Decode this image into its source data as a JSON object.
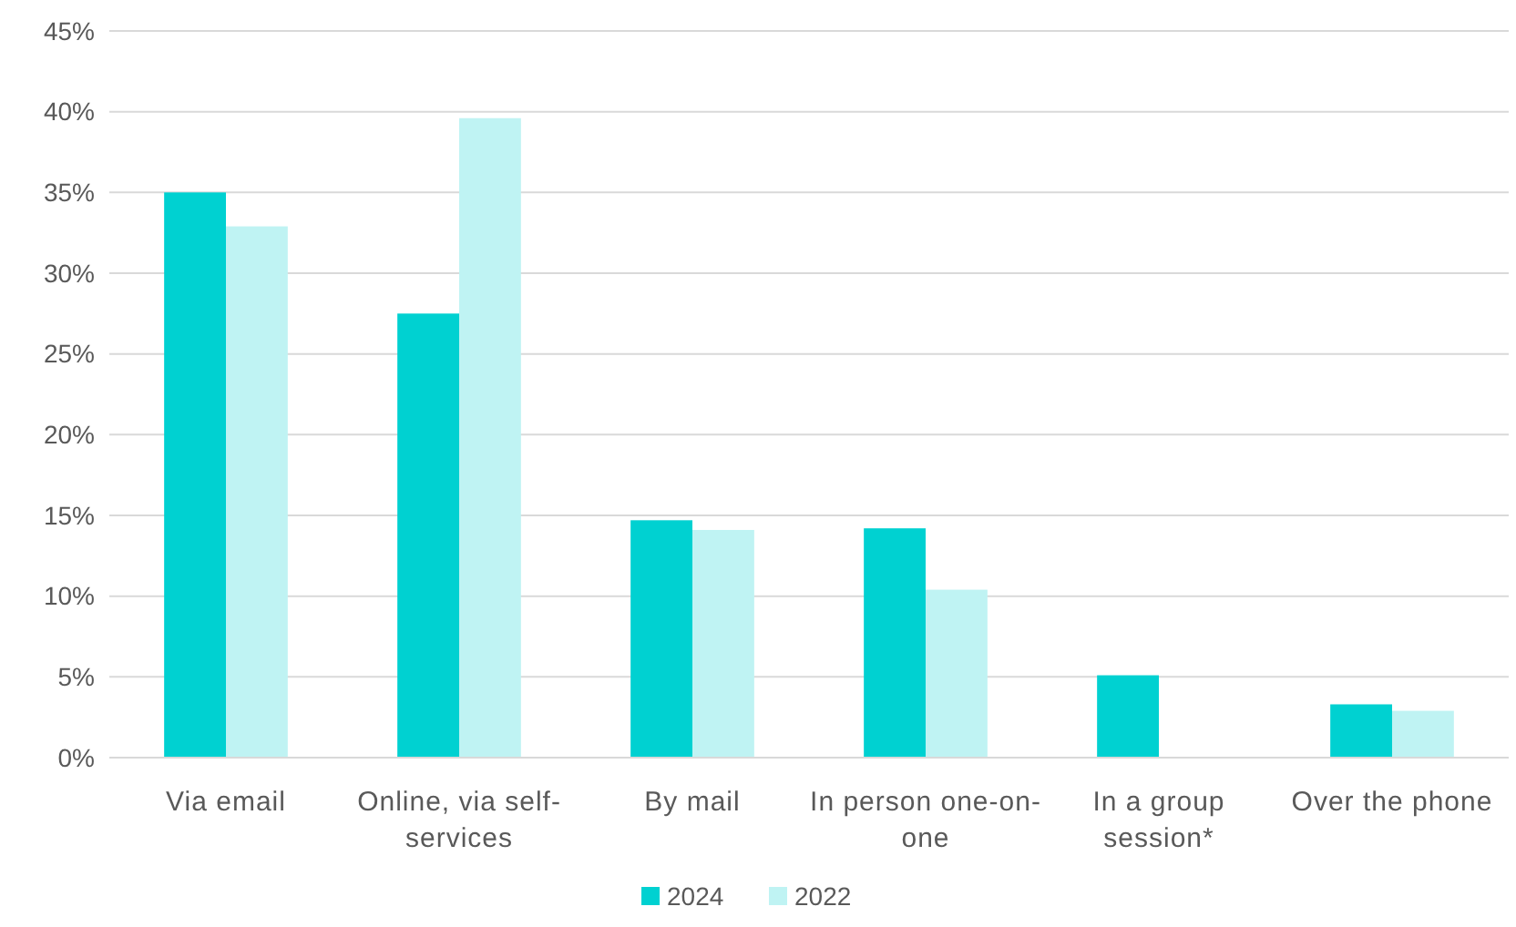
{
  "chart_data": {
    "type": "bar",
    "categories": [
      "Via email",
      "Online, via self-services",
      "By mail",
      "In person one-on-one",
      "In a group session*",
      "Over the phone"
    ],
    "series": [
      {
        "name": "2024",
        "color": "#00d1d1",
        "values": [
          35,
          27.5,
          14.7,
          14.2,
          5.1,
          3.3
        ]
      },
      {
        "name": "2022",
        "color": "#bff3f3",
        "values": [
          32.9,
          39.6,
          14.1,
          10.4,
          null,
          2.9
        ]
      }
    ],
    "ylim": [
      0,
      45
    ],
    "yticks": [
      {
        "value": 0,
        "label": "0%"
      },
      {
        "value": 5,
        "label": "5%"
      },
      {
        "value": 10,
        "label": "10%"
      },
      {
        "value": 15,
        "label": "15%"
      },
      {
        "value": 20,
        "label": "20%"
      },
      {
        "value": 25,
        "label": "25%"
      },
      {
        "value": 30,
        "label": "30%"
      },
      {
        "value": 35,
        "label": "35%"
      },
      {
        "value": 40,
        "label": "40%"
      },
      {
        "value": 45,
        "label": "45%"
      }
    ],
    "grid": "y",
    "legend": "bottom"
  }
}
